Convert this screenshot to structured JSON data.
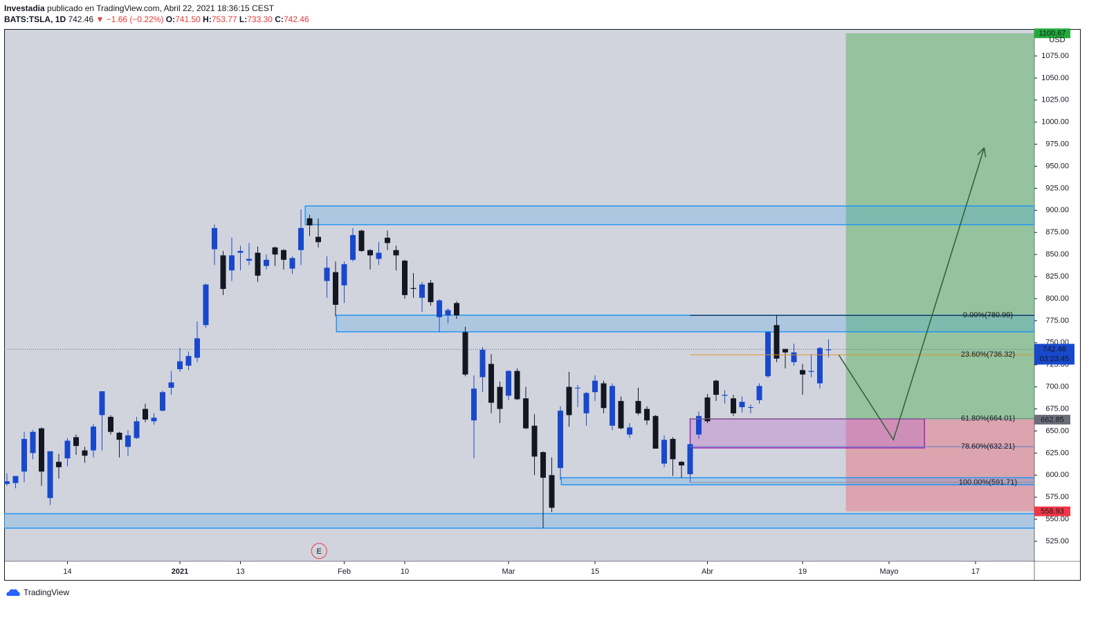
{
  "header": {
    "author": "Investadia",
    "published": "publicado en TradingView.com, Abril 22, 2021 18:36:15 CEST",
    "symbol": "BATS:TSLA, 1D",
    "last": "742.46",
    "change": "▼ −1.66 (−0.22%)",
    "o_label": "O:",
    "o_value": "741.50",
    "h_label": "H:",
    "h_value": "753.77",
    "l_label": "L:",
    "l_value": "733.30",
    "c_label": "C:",
    "c_value": "742.46"
  },
  "footer": {
    "brand": "TradingView"
  },
  "chart_data": {
    "type": "candlestick",
    "up_color": "#1848cc",
    "down_color": "#131722",
    "currency": "USD",
    "xlim": [
      -0.32,
      118.8
    ],
    "ylim": [
      502.3,
      1105.5
    ],
    "xticks": [
      {
        "value": 7,
        "label": "14"
      },
      {
        "value": 20,
        "label": "2021"
      },
      {
        "value": 27,
        "label": "13"
      },
      {
        "value": 39,
        "label": "Feb"
      },
      {
        "value": 46,
        "label": "10"
      },
      {
        "value": 58,
        "label": "Mar"
      },
      {
        "value": 68,
        "label": "15"
      },
      {
        "value": 81,
        "label": "Abr"
      },
      {
        "value": 92,
        "label": "19"
      },
      {
        "value": 102,
        "label": "Mayo"
      },
      {
        "value": 112,
        "label": "17"
      }
    ],
    "yticks": [
      {
        "value": 525,
        "label": "525.00"
      },
      {
        "value": 550,
        "label": "550.00"
      },
      {
        "value": 575,
        "label": "575.00"
      },
      {
        "value": 600,
        "label": "600.00"
      },
      {
        "value": 625,
        "label": "625.00"
      },
      {
        "value": 650,
        "label": "650.00"
      },
      {
        "value": 675,
        "label": "675.00"
      },
      {
        "value": 700,
        "label": "700.00"
      },
      {
        "value": 725,
        "label": "725.00"
      },
      {
        "value": 750,
        "label": "750.00"
      },
      {
        "value": 775,
        "label": "775.00"
      },
      {
        "value": 800,
        "label": "800.00"
      },
      {
        "value": 825,
        "label": "825.00"
      },
      {
        "value": 850,
        "label": "850.00"
      },
      {
        "value": 875,
        "label": "875.00"
      },
      {
        "value": 900,
        "label": "900.00"
      },
      {
        "value": 925,
        "label": "925.00"
      },
      {
        "value": 950,
        "label": "950.00"
      },
      {
        "value": 975,
        "label": "975.00"
      },
      {
        "value": 1000,
        "label": "1000.00"
      },
      {
        "value": 1025,
        "label": "1025.00"
      },
      {
        "value": 1050,
        "label": "1050.00"
      },
      {
        "value": 1075,
        "label": "1075.00"
      }
    ],
    "ohlc": [
      [
        590,
        602,
        588,
        593
      ],
      [
        591,
        599,
        585,
        599
      ],
      [
        604,
        649,
        592,
        641
      ],
      [
        625,
        651,
        618,
        649
      ],
      [
        653,
        654,
        588,
        604
      ],
      [
        574,
        627,
        566,
        627
      ],
      [
        615,
        624,
        596,
        609
      ],
      [
        619,
        642,
        610,
        639
      ],
      [
        643,
        646,
        623,
        633
      ],
      [
        628,
        632,
        614,
        622
      ],
      [
        628,
        658,
        620,
        655
      ],
      [
        668,
        695,
        628,
        695
      ],
      [
        666,
        668,
        646,
        649
      ],
      [
        648,
        649,
        620,
        640
      ],
      [
        632,
        651,
        622,
        645
      ],
      [
        642,
        666,
        641,
        661
      ],
      [
        675,
        681,
        660,
        663
      ],
      [
        661,
        670,
        657,
        665
      ],
      [
        673,
        696,
        672,
        694
      ],
      [
        699,
        718,
        691,
        705
      ],
      [
        720,
        744,
        717,
        729
      ],
      [
        724,
        740,
        719,
        735
      ],
      [
        733,
        774,
        728,
        755
      ],
      [
        770,
        817,
        767,
        816
      ],
      [
        856,
        884,
        838,
        880
      ],
      [
        849,
        854,
        804,
        811
      ],
      [
        832,
        869,
        820,
        849
      ],
      [
        852,
        860,
        832,
        854
      ],
      [
        843,
        863,
        838,
        845
      ],
      [
        852,
        859,
        819,
        826
      ],
      [
        837,
        850,
        833,
        844
      ],
      [
        858,
        859,
        837,
        850
      ],
      [
        855,
        856,
        833,
        844
      ],
      [
        834,
        848,
        828,
        846
      ],
      [
        855,
        901,
        838,
        880
      ],
      [
        891,
        895,
        871,
        883
      ],
      [
        870,
        891,
        858,
        864
      ],
      [
        820,
        848,
        801,
        835
      ],
      [
        830,
        842,
        780,
        793
      ],
      [
        815,
        842,
        795,
        839
      ],
      [
        844,
        880,
        842,
        872
      ],
      [
        877,
        878,
        853,
        854
      ],
      [
        855,
        856,
        833,
        849
      ],
      [
        845,
        864,
        838,
        852
      ],
      [
        869,
        877,
        855,
        863
      ],
      [
        855,
        860,
        832,
        849
      ],
      [
        843,
        844,
        800,
        804
      ],
      [
        812,
        829,
        801,
        811
      ],
      [
        801,
        819,
        785,
        816
      ],
      [
        818,
        821,
        792,
        796
      ],
      [
        779,
        799,
        762,
        798
      ],
      [
        781,
        789,
        772,
        787
      ],
      [
        795,
        797,
        777,
        781
      ],
      [
        762,
        768,
        712,
        714
      ],
      [
        662,
        713,
        619,
        698
      ],
      [
        711,
        745,
        694,
        742
      ],
      [
        726,
        737,
        670,
        682
      ],
      [
        700,
        706,
        659,
        675
      ],
      [
        690,
        719,
        685,
        718
      ],
      [
        718,
        721,
        685,
        686
      ],
      [
        687,
        700,
        652,
        653
      ],
      [
        656,
        669,
        600,
        621
      ],
      [
        626,
        627,
        540,
        597
      ],
      [
        600,
        620,
        558,
        563
      ],
      [
        608,
        678,
        595,
        673
      ],
      [
        700,
        717,
        655,
        668
      ],
      [
        699,
        702,
        677,
        699
      ],
      [
        670,
        694,
        656,
        693
      ],
      [
        694,
        713,
        684,
        707
      ],
      [
        704,
        707,
        670,
        676
      ],
      [
        656,
        704,
        651,
        701
      ],
      [
        684,
        689,
        652,
        653
      ],
      [
        646,
        659,
        642,
        654
      ],
      [
        684,
        699,
        668,
        670
      ],
      [
        675,
        678,
        657,
        662
      ],
      [
        667,
        668,
        630,
        630
      ],
      [
        613,
        645,
        609,
        640
      ],
      [
        641,
        643,
        599,
        618
      ],
      [
        615,
        616,
        597,
        611
      ],
      [
        601,
        637,
        592,
        635
      ],
      [
        646,
        672,
        641,
        667
      ],
      [
        688,
        692,
        659,
        661
      ],
      [
        707,
        708,
        684,
        691
      ],
      [
        690,
        696,
        681,
        691
      ],
      [
        687,
        691,
        667,
        670
      ],
      [
        677,
        689,
        671,
        683
      ],
      [
        677,
        680,
        670,
        677
      ],
      [
        685,
        704,
        681,
        701
      ],
      [
        712,
        763,
        710,
        762
      ],
      [
        770,
        780.99,
        728,
        732
      ],
      [
        743,
        743,
        721,
        739
      ],
      [
        728,
        749,
        724,
        739
      ],
      [
        719,
        726,
        691,
        714
      ],
      [
        717,
        737,
        711,
        718
      ],
      [
        704,
        745,
        698,
        744
      ],
      [
        741.5,
        753.77,
        733.3,
        742.46
      ]
    ],
    "zones": [
      {
        "from": 34.5,
        "low": 883.8,
        "high": 905
      },
      {
        "from": 38.1,
        "low": 762.4,
        "high": 781.2
      },
      {
        "from": 64.1,
        "low": 589,
        "high": 597
      },
      {
        "from": -0.32,
        "low": 539.9,
        "high": 556.3
      }
    ],
    "box": {
      "from": 79,
      "to": 106.1,
      "low": 630.8,
      "high": 663.7
    },
    "position": {
      "from": 97,
      "entry": 662.85,
      "target": 1100.67,
      "stop": 558.93
    },
    "fib": {
      "from": 79,
      "levels": [
        {
          "value": 780.99,
          "label": "0.00%(780.99)",
          "color": "#131722"
        },
        {
          "value": 736.32,
          "label": "23.60%(736.32)",
          "color": "#e0912a"
        },
        {
          "value": 664.01,
          "label": "61.80%(664.01)",
          "color": "#787b86"
        },
        {
          "value": 632.21,
          "label": "78.60%(632.21)",
          "color": "#5b7fc7"
        },
        {
          "value": 591.71,
          "label": "100.00%(591.71)",
          "color": "#8a8d99"
        }
      ]
    },
    "arrow": {
      "x": [
        96.2,
        102.5,
        113
      ],
      "y": [
        736,
        640,
        971
      ]
    },
    "earnings": {
      "at": 36.1,
      "label": "E"
    },
    "last_price": 742.46,
    "countdown": "03:23:45",
    "price_labels": [
      {
        "value": 1100.67,
        "color": "#22ab3b"
      },
      {
        "value": 662.85,
        "color": "#6b6e78"
      },
      {
        "value": 558.93,
        "color": "#f23645"
      }
    ]
  }
}
